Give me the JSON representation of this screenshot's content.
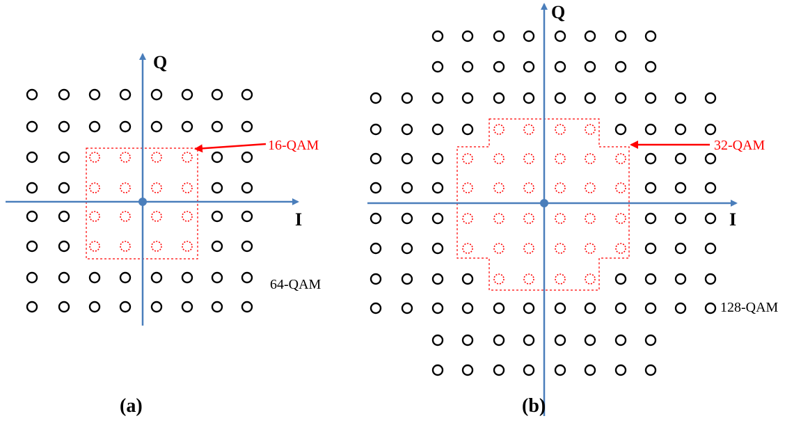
{
  "panels": [
    {
      "id": "a",
      "caption": "(a)",
      "axis_x_label": "I",
      "axis_y_label": "Q",
      "outer_label": "64-QAM",
      "inner_label": "16-QAM",
      "colors": {
        "axis": "#4a7ebb",
        "point": "#000000",
        "inner": "#ff0000"
      }
    },
    {
      "id": "b",
      "caption": "(b)",
      "axis_x_label": "I",
      "axis_y_label": "Q",
      "outer_label": "128-QAM",
      "inner_label": "32-QAM",
      "colors": {
        "axis": "#4a7ebb",
        "point": "#000000",
        "inner": "#ff0000"
      }
    }
  ]
}
